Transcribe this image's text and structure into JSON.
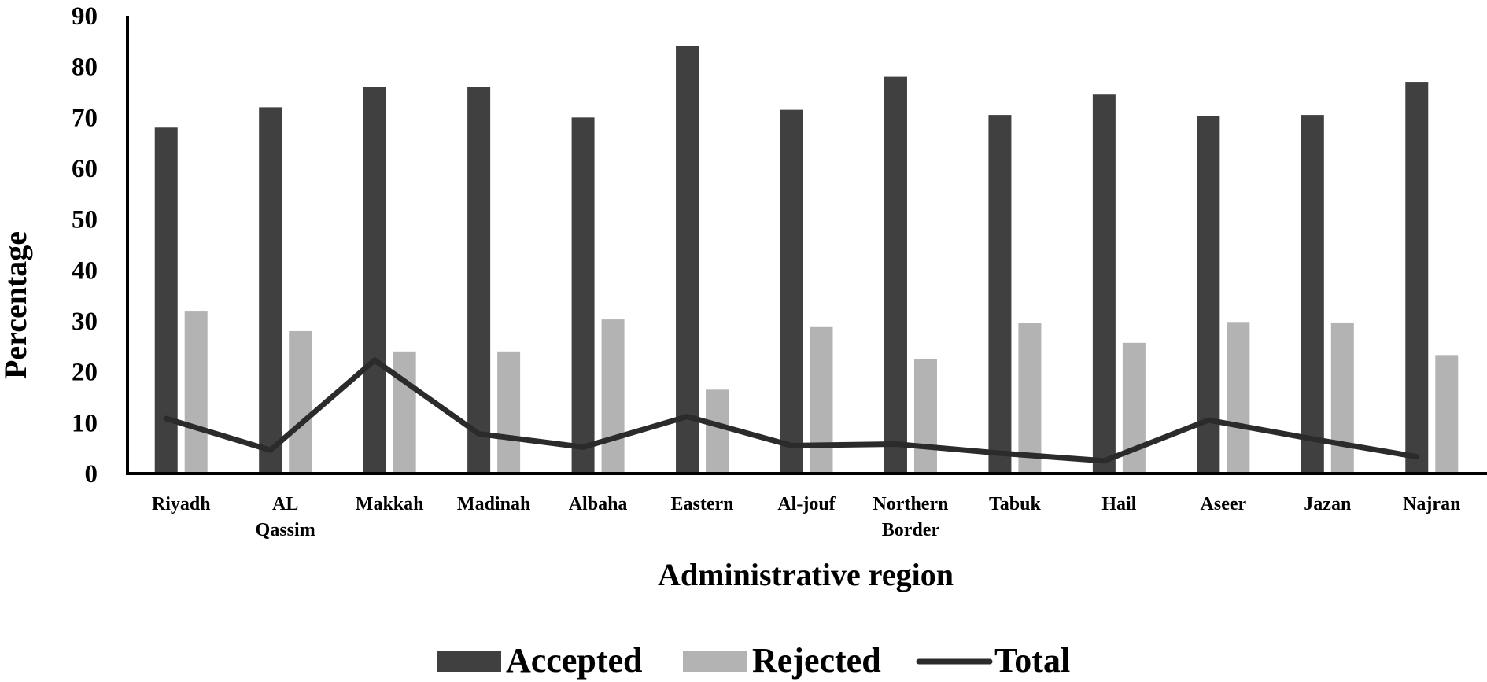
{
  "chart_data": {
    "type": "bar",
    "xlabel": "Administrative region",
    "ylabel": "Percentage",
    "ylim": [
      0,
      90
    ],
    "yticks": [
      0,
      10,
      20,
      30,
      40,
      50,
      60,
      70,
      80,
      90
    ],
    "grid": false,
    "legend_position": "bottom",
    "categories": [
      [
        "Riyadh"
      ],
      [
        "AL",
        "Qassim"
      ],
      [
        "Makkah"
      ],
      [
        "Madinah"
      ],
      [
        "Albaha"
      ],
      [
        "Eastern"
      ],
      [
        "Al-jouf"
      ],
      [
        "Northern",
        "Border"
      ],
      [
        "Tabuk"
      ],
      [
        "Hail"
      ],
      [
        "Aseer"
      ],
      [
        "Jazan"
      ],
      [
        "Najran"
      ]
    ],
    "series": [
      {
        "name": "Accepted",
        "type": "bar",
        "color": "#404040",
        "values": [
          68,
          72,
          76,
          76,
          70,
          84,
          71.5,
          78,
          70.5,
          74.5,
          70.3,
          70.5,
          77
        ]
      },
      {
        "name": "Rejected",
        "type": "bar",
        "color": "#b3b3b3",
        "values": [
          32,
          28,
          24,
          24,
          30.3,
          16.5,
          28.8,
          22.5,
          29.6,
          25.7,
          29.8,
          29.7,
          23.3
        ]
      },
      {
        "name": "Total",
        "type": "line",
        "color": "#2b2b2b",
        "values": [
          10.8,
          4.6,
          22.3,
          7.8,
          5.2,
          11.2,
          5.5,
          5.8,
          4.0,
          2.5,
          10.5,
          6.8,
          3.3
        ]
      }
    ]
  }
}
